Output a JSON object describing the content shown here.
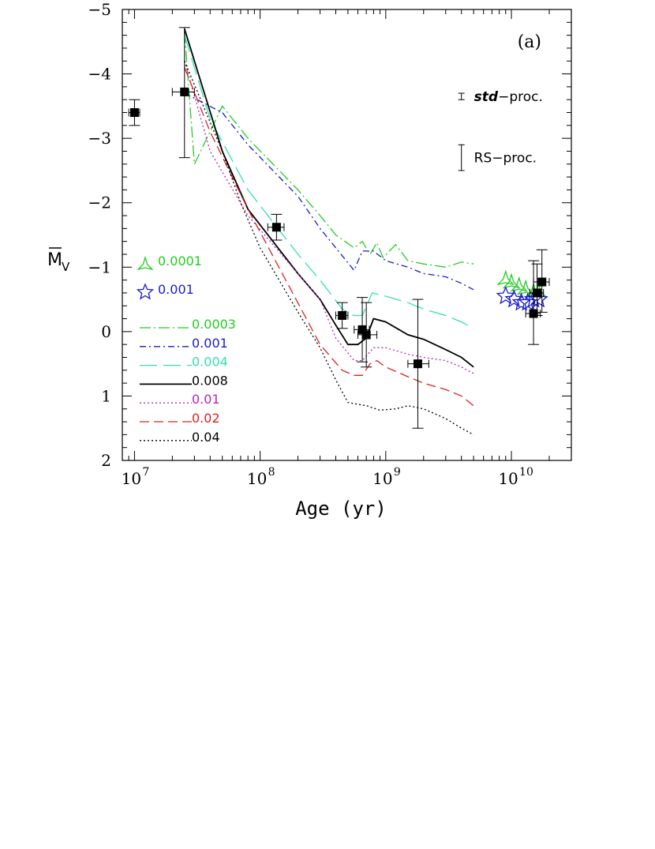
{
  "chart_data": {
    "type": "line",
    "panel_label": "(a)",
    "xlabel": "Age (yr)",
    "ylabel": "M_V (mean)",
    "ylabel_main": "M",
    "ylabel_sub": "V",
    "x_scale": "log",
    "xlim": [
      8000000,
      30000000000
    ],
    "ylim": [
      2,
      -5
    ],
    "y_inverted": true,
    "x_ticks": [
      {
        "value": 10000000,
        "base": "10",
        "exp": "7"
      },
      {
        "value": 100000000,
        "base": "10",
        "exp": "8"
      },
      {
        "value": 1000000000,
        "base": "10",
        "exp": "9"
      },
      {
        "value": 10000000000,
        "base": "10",
        "exp": "10"
      }
    ],
    "y_ticks": [
      {
        "value": -5,
        "label": "−5"
      },
      {
        "value": -4,
        "label": "−4"
      },
      {
        "value": -3,
        "label": "−3"
      },
      {
        "value": -2,
        "label": "−2"
      },
      {
        "value": -1,
        "label": "−1"
      },
      {
        "value": 0,
        "label": "0"
      },
      {
        "value": 1,
        "label": "1"
      },
      {
        "value": 2,
        "label": "2"
      }
    ],
    "series": [
      {
        "name": "0.0003",
        "color": "#22cc22",
        "dash": "14,4,2,4",
        "x": [
          25000000,
          30000000,
          50000000,
          80000000,
          200000000,
          300000000,
          400000000,
          560000000,
          650000000,
          750000000,
          850000000,
          950000000,
          1200000000,
          1500000000,
          2000000000,
          3000000000,
          4000000000,
          5000000000
        ],
        "y": [
          -4.65,
          -2.6,
          -3.5,
          -3.0,
          -2.2,
          -1.8,
          -1.5,
          -1.3,
          -1.4,
          -1.2,
          -1.38,
          -1.15,
          -1.35,
          -1.1,
          -1.05,
          -1.0,
          -1.08,
          -1.05
        ]
      },
      {
        "name": "0.001",
        "color": "#1a1acc",
        "dash": "8,4,2,4",
        "x": [
          25000000,
          50000000,
          80000000,
          200000000,
          300000000,
          400000000,
          560000000,
          650000000,
          800000000,
          1000000000,
          1500000000,
          2000000000,
          3000000000,
          4000000000,
          5000000000
        ],
        "y": [
          -3.7,
          -3.4,
          -2.9,
          -2.1,
          -1.6,
          -1.3,
          -0.95,
          -1.25,
          -1.25,
          -1.1,
          -1.0,
          -0.9,
          -0.85,
          -0.75,
          -0.65
        ]
      },
      {
        "name": "0.004",
        "color": "#33e0b0",
        "dash": "22,8",
        "x": [
          25000000,
          40000000,
          80000000,
          200000000,
          300000000,
          450000000,
          560000000,
          650000000,
          780000000,
          1000000000,
          1500000000,
          2000000000,
          3000000000,
          4000000000,
          5000000000
        ],
        "y": [
          -4.6,
          -3.3,
          -2.2,
          -1.2,
          -0.8,
          -0.35,
          -0.25,
          -0.25,
          -0.6,
          -0.55,
          -0.45,
          -0.35,
          -0.25,
          -0.15,
          -0.05
        ]
      },
      {
        "name": "0.008",
        "color": "#000000",
        "dash": "",
        "x": [
          25000000,
          30000000,
          50000000,
          80000000,
          200000000,
          300000000,
          400000000,
          500000000,
          600000000,
          700000000,
          800000000,
          1000000000,
          1500000000,
          2000000000,
          3000000000,
          4000000000,
          5000000000
        ],
        "y": [
          -4.7,
          -4.2,
          -2.8,
          -1.9,
          -0.9,
          -0.5,
          -0.1,
          0.2,
          0.2,
          0.1,
          -0.2,
          -0.15,
          0.05,
          0.12,
          0.28,
          0.4,
          0.55
        ]
      },
      {
        "name": "0.01",
        "color": "#bb22bb",
        "dash": "2,3",
        "x": [
          25000000,
          40000000,
          80000000,
          200000000,
          300000000,
          400000000,
          560000000,
          650000000,
          800000000,
          1000000000,
          1500000000,
          2000000000,
          3000000000,
          4000000000,
          5000000000
        ],
        "y": [
          -4.2,
          -2.8,
          -1.8,
          -0.9,
          -0.5,
          0.1,
          0.45,
          0.45,
          0.25,
          0.25,
          0.35,
          0.4,
          0.45,
          0.55,
          0.65
        ]
      },
      {
        "name": "0.02",
        "color": "#e02020",
        "dash": "12,6",
        "x": [
          25000000,
          40000000,
          80000000,
          150000000,
          300000000,
          450000000,
          560000000,
          650000000,
          750000000,
          850000000,
          1000000000,
          1500000000,
          2000000000,
          3000000000,
          4000000000,
          5000000000
        ],
        "y": [
          -4.1,
          -3.1,
          -1.9,
          -0.9,
          0.2,
          0.6,
          0.68,
          0.68,
          0.5,
          0.45,
          0.55,
          0.7,
          0.8,
          0.9,
          1.0,
          1.15
        ]
      },
      {
        "name": "0.04",
        "color": "#000000",
        "dash": "2,3",
        "x": [
          25000000,
          50000000,
          70000000,
          100000000,
          200000000,
          300000000,
          400000000,
          500000000,
          700000000,
          900000000,
          1200000000,
          1500000000,
          2000000000,
          3000000000,
          4000000000,
          5000000000
        ],
        "y": [
          -4.2,
          -2.8,
          -2.0,
          -1.3,
          -0.3,
          0.25,
          0.75,
          1.1,
          1.15,
          1.22,
          1.2,
          1.15,
          1.2,
          1.35,
          1.5,
          1.6
        ]
      }
    ],
    "markers": {
      "z0001": {
        "name": "0.0001",
        "color": "#22cc22",
        "shape": "tri-star",
        "points": [
          [
            9000000000,
            -0.8
          ],
          [
            10000000000,
            -0.75
          ],
          [
            11500000000,
            -0.7
          ],
          [
            13000000000,
            -0.65
          ],
          [
            15000000000,
            -0.6
          ],
          [
            16500000000,
            -0.6
          ]
        ]
      },
      "z001": {
        "name": "0.001",
        "color": "#1a1acc",
        "shape": "star",
        "points": [
          [
            9000000000,
            -0.55
          ],
          [
            10500000000,
            -0.5
          ],
          [
            12000000000,
            -0.45
          ],
          [
            13500000000,
            -0.45
          ],
          [
            15000000000,
            -0.5
          ],
          [
            16500000000,
            -0.5
          ]
        ]
      }
    },
    "data_points": [
      {
        "x": 10000000,
        "y": -3.4,
        "xlo": 9000000,
        "xhi": 11000000,
        "ylo": -3.6,
        "yhi": -3.2
      },
      {
        "x": 25000000,
        "y": -3.72,
        "xlo": 20000000,
        "xhi": 30000000,
        "ylo": -4.72,
        "yhi": -2.7
      },
      {
        "x": 135000000,
        "y": -1.62,
        "xlo": 115000000,
        "xhi": 155000000,
        "ylo": -1.82,
        "yhi": -1.42
      },
      {
        "x": 450000000,
        "y": -0.25,
        "xlo": 400000000,
        "xhi": 500000000,
        "ylo": -0.45,
        "yhi": -0.05
      },
      {
        "x": 650000000,
        "y": -0.03,
        "xlo": 560000000,
        "xhi": 740000000,
        "ylo": -0.53,
        "yhi": 0.47
      },
      {
        "x": 700000000,
        "y": 0.05,
        "xlo": 600000000,
        "xhi": 850000000,
        "ylo": -0.45,
        "yhi": 0.55
      },
      {
        "x": 1800000000,
        "y": 0.5,
        "xlo": 1500000000,
        "xhi": 2200000000,
        "ylo": -0.5,
        "yhi": 1.5
      },
      {
        "x": 15000000000,
        "y": -0.28,
        "xlo": 13000000000,
        "xhi": 17000000000,
        "ylo": -1.1,
        "yhi": 0.2
      },
      {
        "x": 16000000000,
        "y": -0.6,
        "xlo": 14000000000,
        "xhi": 18000000000,
        "ylo": -1.05,
        "yhi": -0.25
      },
      {
        "x": 17500000000,
        "y": -0.77,
        "xlo": 15000000000,
        "xhi": 20000000000,
        "ylo": -1.27,
        "yhi": -0.3
      }
    ],
    "error_bar_annotations": [
      {
        "label_italic": "std",
        "label_rest": "−proc.",
        "anchor_x": 4000000000,
        "y_center": -3.65,
        "y_half": 0.05
      },
      {
        "label_italic": "",
        "label_rest": "RS−proc.",
        "anchor_x": 4000000000,
        "y_center": -2.7,
        "y_half": 0.2
      }
    ],
    "legend_order": [
      "0.0003",
      "0.001",
      "0.004",
      "0.008",
      "0.01",
      "0.02",
      "0.04"
    ]
  }
}
